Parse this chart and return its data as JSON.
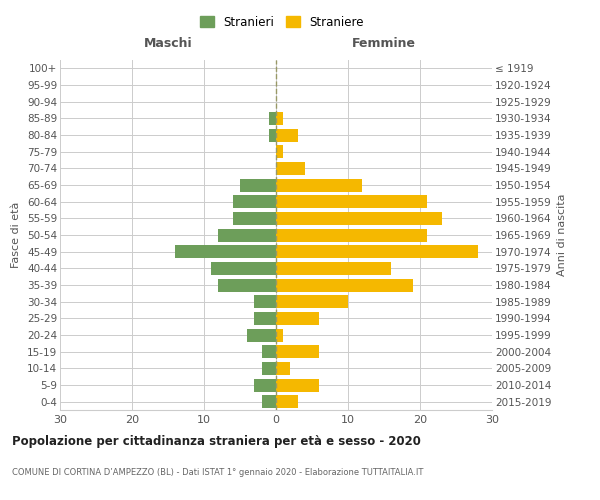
{
  "age_groups": [
    "0-4",
    "5-9",
    "10-14",
    "15-19",
    "20-24",
    "25-29",
    "30-34",
    "35-39",
    "40-44",
    "45-49",
    "50-54",
    "55-59",
    "60-64",
    "65-69",
    "70-74",
    "75-79",
    "80-84",
    "85-89",
    "90-94",
    "95-99",
    "100+"
  ],
  "birth_years": [
    "2015-2019",
    "2010-2014",
    "2005-2009",
    "2000-2004",
    "1995-1999",
    "1990-1994",
    "1985-1989",
    "1980-1984",
    "1975-1979",
    "1970-1974",
    "1965-1969",
    "1960-1964",
    "1955-1959",
    "1950-1954",
    "1945-1949",
    "1940-1944",
    "1935-1939",
    "1930-1934",
    "1925-1929",
    "1920-1924",
    "≤ 1919"
  ],
  "males": [
    2,
    3,
    2,
    2,
    4,
    3,
    3,
    8,
    9,
    14,
    8,
    6,
    6,
    5,
    0,
    0,
    1,
    1,
    0,
    0,
    0
  ],
  "females": [
    3,
    6,
    2,
    6,
    1,
    6,
    10,
    19,
    16,
    28,
    21,
    23,
    21,
    12,
    4,
    1,
    3,
    1,
    0,
    0,
    0
  ],
  "male_color": "#6d9e5a",
  "female_color": "#f5b800",
  "background_color": "#ffffff",
  "grid_color": "#cccccc",
  "title": "Popolazione per cittadinanza straniera per età e sesso - 2020",
  "subtitle": "COMUNE DI CORTINA D’AMPEZZO (BL) - Dati ISTAT 1° gennaio 2020 - Elaborazione TUTTAITALIA.IT",
  "ylabel_left": "Fasce di età",
  "ylabel_right": "Anni di nascita",
  "xlabel_left": "Maschi",
  "xlabel_right": "Femmine",
  "xlim": 30,
  "legend_labels": [
    "Stranieri",
    "Straniere"
  ],
  "dashed_line_color": "#999966"
}
